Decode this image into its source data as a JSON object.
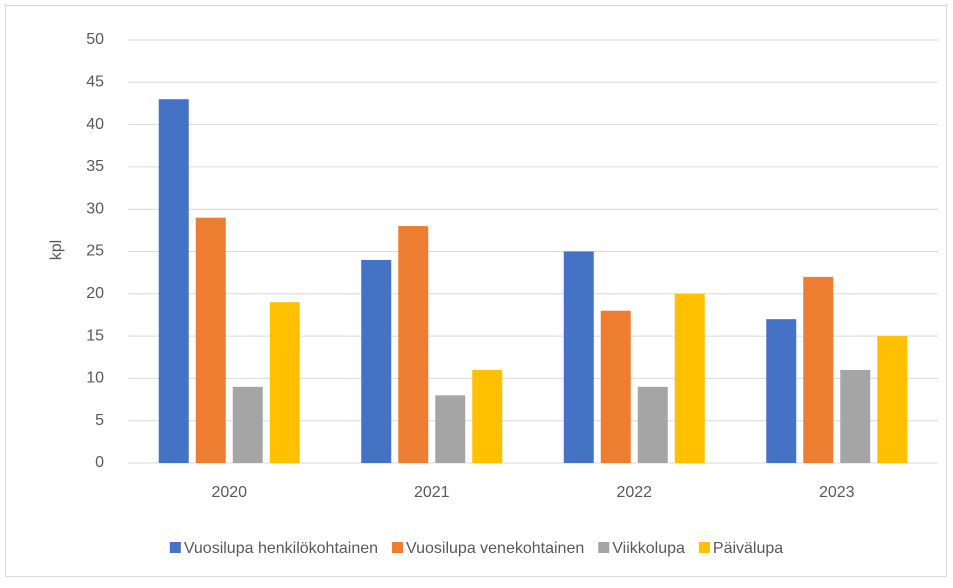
{
  "chart_data": {
    "type": "bar",
    "y_label": "kpl",
    "categories": [
      "2020",
      "2021",
      "2022",
      "2023"
    ],
    "series": [
      {
        "name": "Vuosilupa henkilökohtainen",
        "color": "#4472c4",
        "values": [
          43,
          24,
          25,
          17
        ]
      },
      {
        "name": "Vuosilupa venekohtainen",
        "color": "#ed7d31",
        "values": [
          29,
          28,
          18,
          22
        ]
      },
      {
        "name": "Viikkolupa",
        "color": "#a5a5a5",
        "values": [
          9,
          8,
          9,
          11
        ]
      },
      {
        "name": "Päivälupa",
        "color": "#ffc000",
        "values": [
          19,
          11,
          20,
          15
        ]
      }
    ],
    "ylim": [
      0,
      50
    ],
    "yticks": [
      0,
      5,
      10,
      15,
      20,
      25,
      30,
      35,
      40,
      45,
      50
    ],
    "grid": true,
    "legend": "bottom"
  }
}
